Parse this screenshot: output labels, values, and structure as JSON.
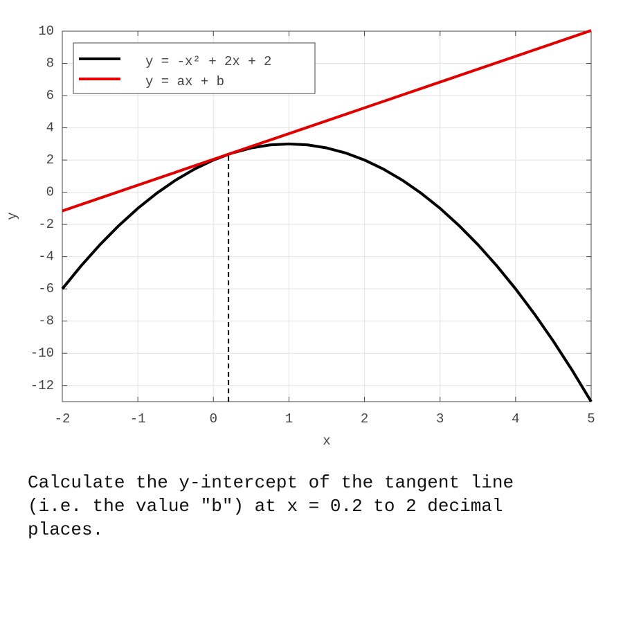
{
  "chart_data": {
    "type": "line",
    "xlabel": "x",
    "ylabel": "y",
    "xlim": [
      -2,
      5
    ],
    "ylim": [
      -13,
      10
    ],
    "xticks": [
      -2,
      -1,
      0,
      1,
      2,
      3,
      4,
      5
    ],
    "yticks": [
      -12,
      -10,
      -8,
      -6,
      -4,
      -2,
      0,
      2,
      4,
      6,
      8,
      10
    ],
    "grid": true,
    "legend": "upper left",
    "series": [
      {
        "name": "y = -x² + 2x + 2",
        "color": "#000000",
        "x": [
          -2,
          -1.75,
          -1.5,
          -1.25,
          -1,
          -0.75,
          -0.5,
          -0.25,
          0,
          0.25,
          0.5,
          0.75,
          1,
          1.25,
          1.5,
          1.75,
          2,
          2.25,
          2.5,
          2.75,
          3,
          3.25,
          3.5,
          3.75,
          4,
          4.25,
          4.5,
          4.75,
          5
        ],
        "values": [
          -6,
          -4.5625,
          -3.25,
          -2.0625,
          -1,
          -0.0625,
          0.75,
          1.4375,
          2,
          2.4375,
          2.75,
          2.9375,
          3,
          2.9375,
          2.75,
          2.4375,
          2,
          1.4375,
          0.75,
          -0.0625,
          -1,
          -2.0625,
          -3.25,
          -4.5625,
          -6,
          -7.5625,
          -9.25,
          -11.0625,
          -13
        ]
      },
      {
        "name": "y = ax + b",
        "color": "#e00000",
        "x": [
          -2,
          5
        ],
        "values": [
          -1.16,
          10.04
        ]
      }
    ],
    "vline": {
      "x": 0.2,
      "y": 2.36,
      "color": "#000000"
    }
  },
  "question": "Calculate the y-intercept of the tangent line (i.e. the value \"b\") at x = 0.2 to 2 decimal places."
}
